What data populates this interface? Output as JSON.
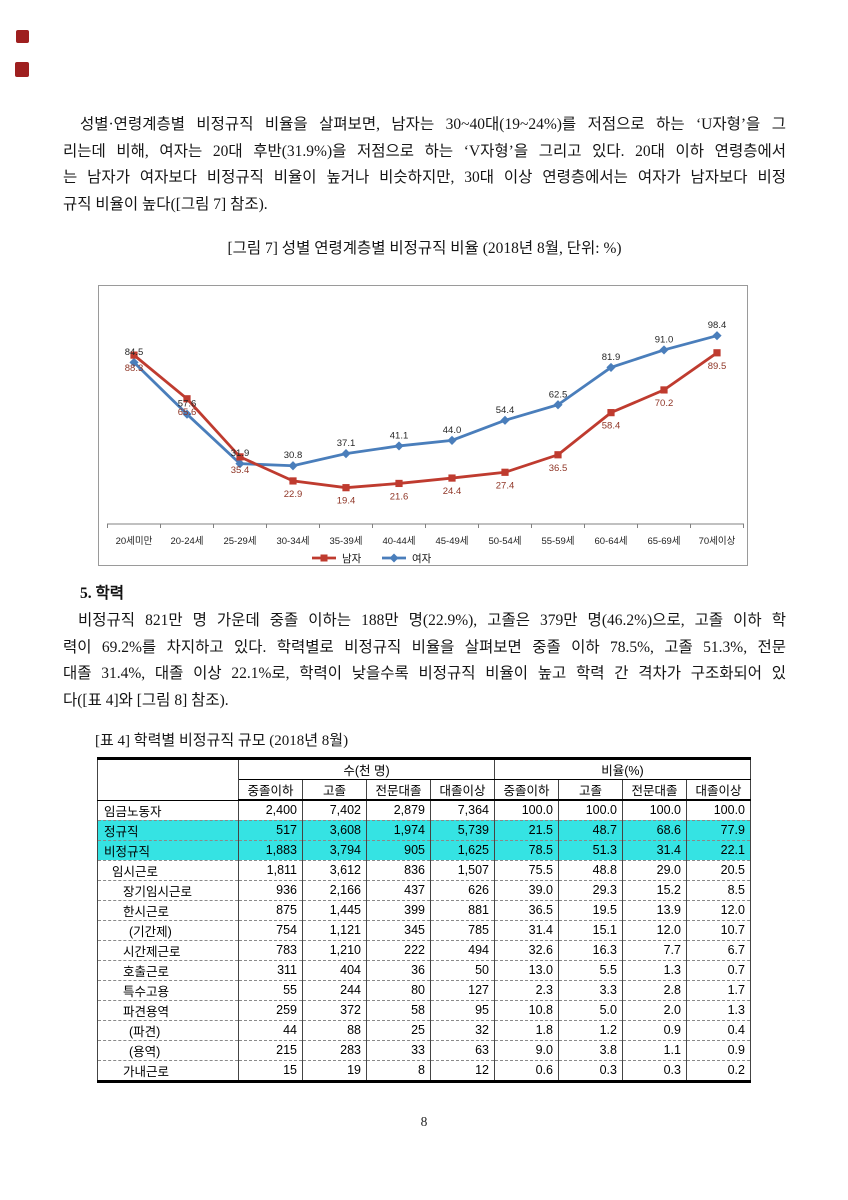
{
  "artifacts": {
    "mark_color": "#9e1f1f"
  },
  "body1": {
    "lines": [
      "성별·연령계층별 비정규직 비율을 살펴보면, 남자는 30~40대(19~24%)를 저점으로 하는 ‘U자형’을 그",
      "리는데 비해, 여자는 20대 후반(31.9%)을 저점으로 하는 ‘V자형’을 그리고 있다. 20대 이하 연령층에서",
      "는 남자가 여자보다 비정규직 비율이 높거나 비슷하지만, 30대 이상 연령층에서는 여자가 남자보다 비정",
      "규직 비율이 높다([그림 7] 참조)."
    ]
  },
  "figure_caption": "[그림 7] 성별 연령계층별 비정규직 비율 (2018년 8월, 단위: %)",
  "chart_data": {
    "type": "line",
    "title": "[그림 7] 성별 연령계층별 비정규직 비율 (2018년 8월, 단위: %)",
    "categories": [
      "20세미만",
      "20-24세",
      "25-29세",
      "30-34세",
      "35-39세",
      "40-44세",
      "45-49세",
      "50-54세",
      "55-59세",
      "60-64세",
      "65-69세",
      "70세이상"
    ],
    "series": [
      {
        "name": "남자",
        "color": "#bf3b2f",
        "marker": "square",
        "label_position": "below",
        "label_color": "#8f3526",
        "values": [
          88.3,
          65.6,
          35.4,
          22.9,
          19.4,
          21.6,
          24.4,
          27.4,
          36.5,
          58.4,
          70.2,
          89.5
        ]
      },
      {
        "name": "여자",
        "color": "#4a7ebb",
        "marker": "diamond",
        "label_position": "above",
        "label_color": "#262626",
        "values": [
          84.5,
          57.6,
          31.9,
          30.8,
          37.1,
          41.1,
          44.0,
          54.4,
          62.5,
          81.9,
          91.0,
          98.4
        ]
      }
    ],
    "xlabel": "",
    "ylabel": "",
    "ylim": [
      0,
      120
    ],
    "grid": false,
    "legend_position": "bottom"
  },
  "section_heading": "5. 학력",
  "body2": {
    "lines": [
      "비정규직 821만 명 가운데 중졸 이하는 188만 명(22.9%), 고졸은 379만 명(46.2%)으로, 고졸 이하 학",
      "력이 69.2%를 차지하고 있다. 학력별로 비정규직 비율을 살펴보면 중졸 이하 78.5%, 고졸 51.3%, 전문",
      "대졸 31.4%, 대졸 이상 22.1%로, 학력이 낮을수록 비정규직 비율이 높고 학력 간 격차가 구조화되어 있",
      "다([표 4]와 [그림 8] 참조)."
    ]
  },
  "table": {
    "caption": "[표 4] 학력별 비정규직 규모 (2018년 8월)",
    "group_headers": [
      "수(천 명)",
      "비율(%)"
    ],
    "col_headers": [
      "중졸이하",
      "고졸",
      "전문대졸",
      "대졸이상",
      "중졸이하",
      "고졸",
      "전문대졸",
      "대졸이상"
    ],
    "highlight_color": "#35e3e3",
    "rows": [
      {
        "label": "임금노동자",
        "indent": 0,
        "highlight": false,
        "values": [
          "2,400",
          "7,402",
          "2,879",
          "7,364",
          "100.0",
          "100.0",
          "100.0",
          "100.0"
        ]
      },
      {
        "label": "정규직",
        "indent": 0,
        "highlight": true,
        "values": [
          "517",
          "3,608",
          "1,974",
          "5,739",
          "21.5",
          "48.7",
          "68.6",
          "77.9"
        ]
      },
      {
        "label": "비정규직",
        "indent": 0,
        "highlight": true,
        "values": [
          "1,883",
          "3,794",
          "905",
          "1,625",
          "78.5",
          "51.3",
          "31.4",
          "22.1"
        ]
      },
      {
        "label": "임시근로",
        "indent": 1,
        "highlight": false,
        "values": [
          "1,811",
          "3,612",
          "836",
          "1,507",
          "75.5",
          "48.8",
          "29.0",
          "20.5"
        ]
      },
      {
        "label": "장기임시근로",
        "indent": 2,
        "highlight": false,
        "values": [
          "936",
          "2,166",
          "437",
          "626",
          "39.0",
          "29.3",
          "15.2",
          "8.5"
        ]
      },
      {
        "label": "한시근로",
        "indent": 2,
        "highlight": false,
        "values": [
          "875",
          "1,445",
          "399",
          "881",
          "36.5",
          "19.5",
          "13.9",
          "12.0"
        ]
      },
      {
        "label": "(기간제)",
        "indent": 3,
        "highlight": false,
        "values": [
          "754",
          "1,121",
          "345",
          "785",
          "31.4",
          "15.1",
          "12.0",
          "10.7"
        ]
      },
      {
        "label": "시간제근로",
        "indent": 2,
        "highlight": false,
        "values": [
          "783",
          "1,210",
          "222",
          "494",
          "32.6",
          "16.3",
          "7.7",
          "6.7"
        ]
      },
      {
        "label": "호출근로",
        "indent": 2,
        "highlight": false,
        "values": [
          "311",
          "404",
          "36",
          "50",
          "13.0",
          "5.5",
          "1.3",
          "0.7"
        ]
      },
      {
        "label": "특수고용",
        "indent": 2,
        "highlight": false,
        "values": [
          "55",
          "244",
          "80",
          "127",
          "2.3",
          "3.3",
          "2.8",
          "1.7"
        ]
      },
      {
        "label": "파견용역",
        "indent": 2,
        "highlight": false,
        "values": [
          "259",
          "372",
          "58",
          "95",
          "10.8",
          "5.0",
          "2.0",
          "1.3"
        ]
      },
      {
        "label": "(파견)",
        "indent": 3,
        "highlight": false,
        "values": [
          "44",
          "88",
          "25",
          "32",
          "1.8",
          "1.2",
          "0.9",
          "0.4"
        ]
      },
      {
        "label": "(용역)",
        "indent": 3,
        "highlight": false,
        "values": [
          "215",
          "283",
          "33",
          "63",
          "9.0",
          "3.8",
          "1.1",
          "0.9"
        ]
      },
      {
        "label": "가내근로",
        "indent": 2,
        "highlight": false,
        "values": [
          "15",
          "19",
          "8",
          "12",
          "0.6",
          "0.3",
          "0.3",
          "0.2"
        ]
      }
    ]
  },
  "page_number": "8"
}
